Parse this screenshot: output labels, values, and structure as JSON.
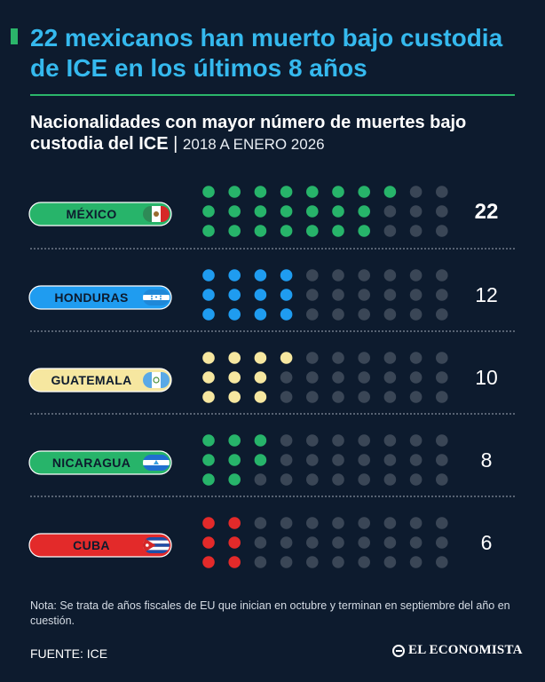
{
  "header": {
    "title": "22 mexicanos han muerto bajo custodia de ICE en los últimos 8 años",
    "subtitle_main": "Nacionalidades con mayor número de muertes bajo custodia del ICE",
    "subtitle_separator": " | ",
    "subtitle_period": "2018 A ENERO 2026"
  },
  "chart_data": {
    "type": "bar",
    "encoding": "dot-matrix pictogram, one dot per death",
    "categories": [
      "MÉXICO",
      "HONDURAS",
      "GUATEMALA",
      "NICARAGUA",
      "CUBA"
    ],
    "values": [
      22,
      12,
      10,
      8,
      6
    ],
    "colors": [
      "#27b46a",
      "#1f9cf0",
      "#f6e7a0",
      "#27b46a",
      "#e32a2a"
    ],
    "empty_dot_color": "#3a4656",
    "label_colors": {
      "text": "#0d1b2e",
      "highlight_value": "MÉXICO"
    },
    "grid": false,
    "legend": "none"
  },
  "footer": {
    "note": "Nota: Se trata de años fiscales de EU que inician en octubre y terminan en septiembre del año en cuestión.",
    "source": "FUENTE: ICE",
    "brand": "EL ECONOMISTA"
  }
}
